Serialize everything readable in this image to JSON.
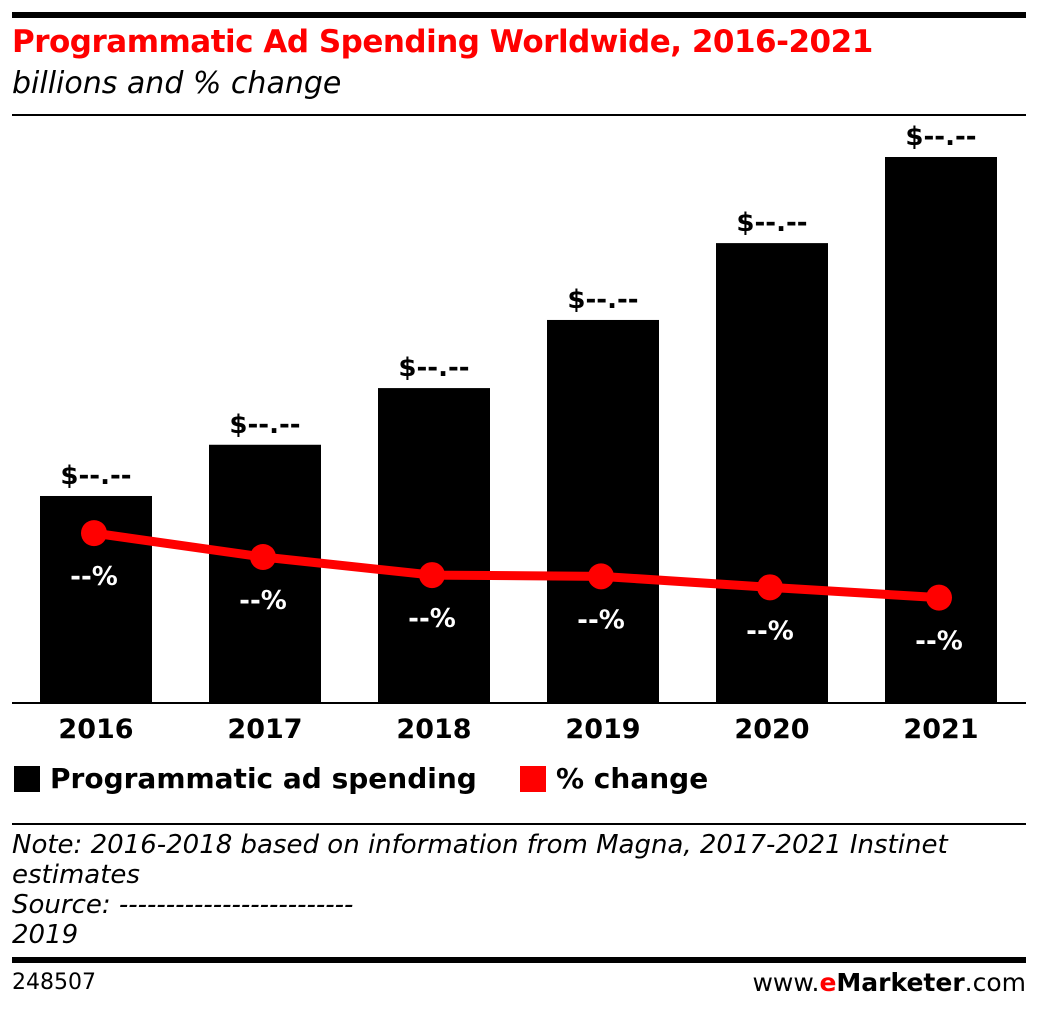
{
  "header": {
    "title": "Programmatic Ad Spending Worldwide, 2016-2021",
    "subtitle": "billions and % change"
  },
  "chart_data": {
    "type": "bar",
    "title": "Programmatic Ad Spending Worldwide, 2016-2021",
    "subtitle": "billions and % change",
    "categories": [
      "2016",
      "2017",
      "2018",
      "2019",
      "2020",
      "2021"
    ],
    "series": [
      {
        "name": "Programmatic ad spending",
        "type": "bar",
        "color": "#000000",
        "values": [
          37.8,
          47.2,
          57.6,
          70.1,
          84.2,
          100
        ],
        "labels": [
          "$--.--",
          "$--.--",
          "$--.--",
          "$--.--",
          "$--.--",
          "$--.--"
        ]
      },
      {
        "name": "% change",
        "type": "line",
        "color": "#ff0000",
        "values": [
          28.5,
          24.8,
          22.0,
          21.8,
          20.1,
          18.5
        ],
        "labels": [
          "--%",
          "--%",
          "--%",
          "--%",
          "--%",
          "--%"
        ]
      }
    ],
    "grid": false,
    "legend": "bottom-left"
  },
  "footer": {
    "note": "Note: 2016-2018 based on information from Magna, 2017-2021 Instinet estimates",
    "source": "Source: -------------------------",
    "year": "2019",
    "chart_id": "248507",
    "brand_pre": "www.",
    "brand_e": "e",
    "brand_main": "Marketer",
    "brand_post": ".com"
  }
}
